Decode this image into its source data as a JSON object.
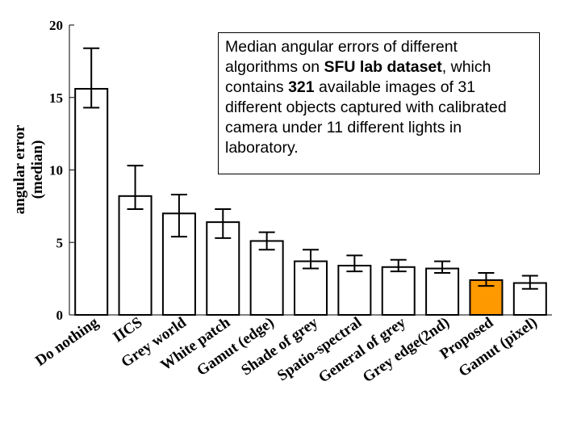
{
  "chart_data": {
    "type": "bar",
    "categories": [
      "Do nothing",
      "IICS",
      "Grey world",
      "White patch",
      "Gamut (edge)",
      "Shade of grey",
      "Spatio-spectral",
      "General of grey",
      "Grey edge(2nd)",
      "Proposed",
      "Gamut (pixel)"
    ],
    "values": [
      15.6,
      8.2,
      7.0,
      6.4,
      5.1,
      3.7,
      3.4,
      3.3,
      3.2,
      2.4,
      2.2
    ],
    "error_low": [
      14.3,
      7.3,
      5.4,
      5.3,
      4.5,
      3.2,
      3.0,
      3.0,
      2.9,
      2.0,
      1.8
    ],
    "error_high": [
      18.4,
      10.3,
      8.3,
      7.3,
      5.7,
      4.5,
      4.1,
      3.8,
      3.7,
      2.9,
      2.7
    ],
    "highlight_index": 9,
    "highlight_color": "#ff9900",
    "bar_color": "#ffffff",
    "ylabel_line1": "angular error",
    "ylabel_line2": "(median)",
    "ylim": [
      0,
      20
    ],
    "yticks": [
      0,
      5,
      10,
      15,
      20
    ],
    "grid": false,
    "annotation": {
      "part1": "Median angular errors of different algorithms on ",
      "bold1": "SFU lab dataset",
      "part2": ", which contains ",
      "bold2": "321",
      "part3": " available images of 31 different objects captured with calibrated camera under 11 different lights in laboratory."
    }
  }
}
